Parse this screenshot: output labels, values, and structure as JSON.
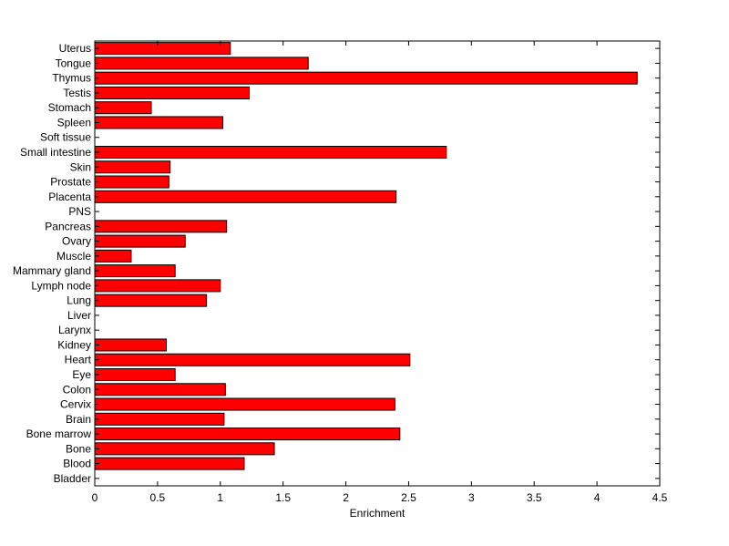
{
  "chart_data": {
    "type": "bar",
    "orientation": "horizontal",
    "xlabel": "Enrichment",
    "ylabel": "",
    "title": "",
    "xlim": [
      0,
      4.5
    ],
    "xticks": [
      "0",
      "0.5",
      "1",
      "1.5",
      "2",
      "2.5",
      "3",
      "3.5",
      "4",
      "4.5"
    ],
    "grid": false,
    "bar_color": "#ff0000",
    "categories": [
      "Uterus",
      "Tongue",
      "Thymus",
      "Testis",
      "Stomach",
      "Spleen",
      "Soft tissue",
      "Small intestine",
      "Skin",
      "Prostate",
      "Placenta",
      "PNS",
      "Pancreas",
      "Ovary",
      "Muscle",
      "Mammary gland",
      "Lymph node",
      "Lung",
      "Liver",
      "Larynx",
      "Kidney",
      "Heart",
      "Eye",
      "Colon",
      "Cervix",
      "Brain",
      "Bone marrow",
      "Bone",
      "Blood",
      "Bladder"
    ],
    "values": [
      1.08,
      1.7,
      4.32,
      1.23,
      0.45,
      1.02,
      0,
      2.8,
      0.6,
      0.59,
      2.4,
      0,
      1.05,
      0.72,
      0.29,
      0.64,
      1.0,
      0.89,
      0,
      0,
      0.57,
      2.51,
      0.64,
      1.04,
      2.39,
      1.03,
      2.43,
      1.43,
      1.19,
      0
    ]
  }
}
